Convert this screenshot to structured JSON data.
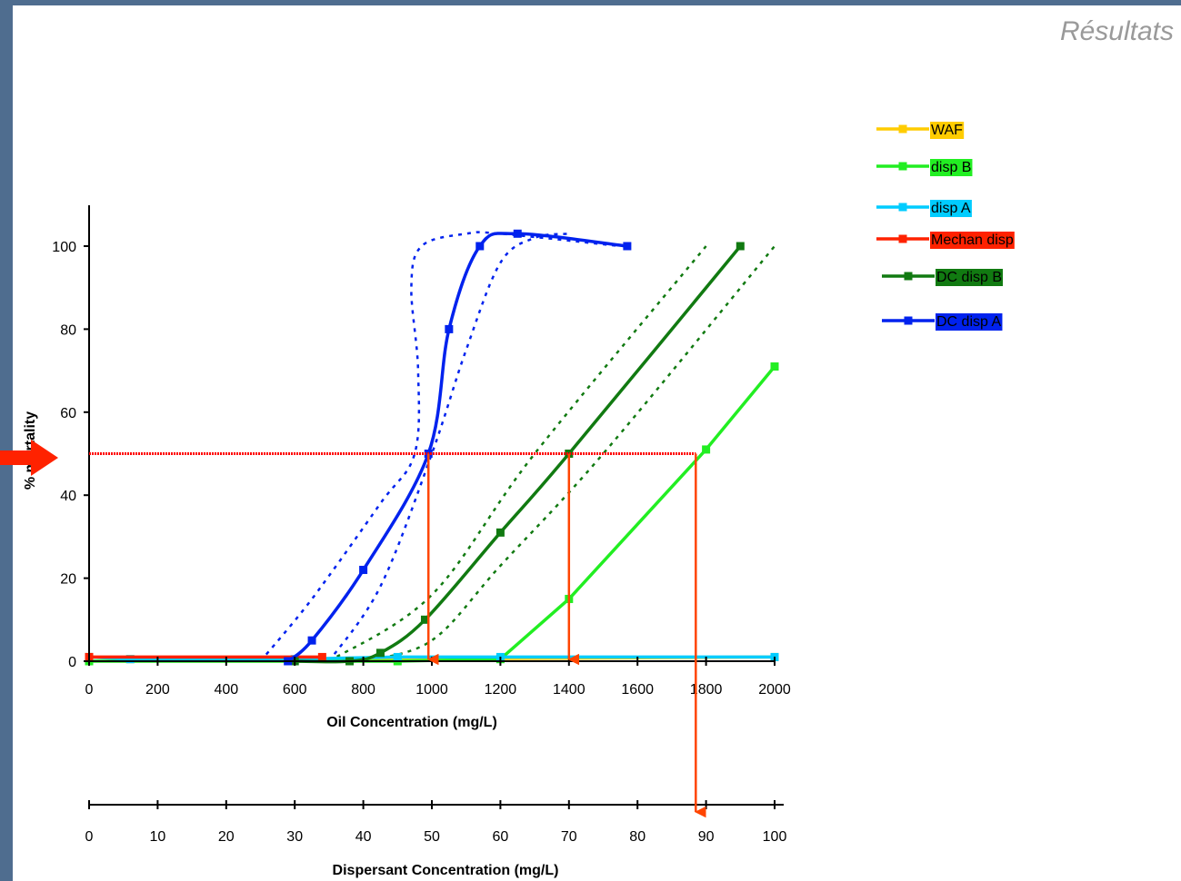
{
  "header": {
    "title": "Résultats"
  },
  "colors": {
    "waf": "#ffcc00",
    "disp_b": "#22ee22",
    "disp_a": "#00ccff",
    "mechan": "#ff2200",
    "dc_disp_b": "#117a11",
    "dc_disp_a": "#0022ee",
    "arrow": "#ff4500",
    "guide": "#ff0000"
  },
  "chart_data": {
    "type": "line",
    "xlabel": "Oil Concentration (mg/L)",
    "x2label": "Dispersant Concentration (mg/L)",
    "ylabel": "% mortality",
    "xlim": [
      0,
      2000
    ],
    "x2lim": [
      0,
      100
    ],
    "ylim": [
      0,
      110
    ],
    "xticks": [
      0,
      200,
      400,
      600,
      800,
      1000,
      1200,
      1400,
      1600,
      1800,
      2000
    ],
    "x2ticks": [
      0,
      10,
      20,
      30,
      40,
      50,
      60,
      70,
      80,
      90,
      100
    ],
    "yticks": [
      0,
      20,
      40,
      60,
      80,
      100
    ],
    "grid": false,
    "legend_position": "top-right",
    "series": [
      {
        "name": "WAF",
        "color": "#ffcc00",
        "x": [
          0,
          120,
          900,
          2000
        ],
        "y": [
          1,
          0.5,
          0.5,
          1
        ]
      },
      {
        "name": "disp B",
        "color": "#22ee22",
        "x": [
          0,
          900,
          1200,
          1400,
          1800,
          2000
        ],
        "y": [
          0,
          0,
          0.5,
          15,
          51,
          71
        ]
      },
      {
        "name": "disp A",
        "color": "#00ccff",
        "x": [
          0,
          120,
          600,
          900,
          1200,
          2000
        ],
        "y": [
          1,
          0.5,
          0.5,
          1,
          1,
          1
        ]
      },
      {
        "name": "Mechan disp",
        "color": "#ff2200",
        "x": [
          0,
          680
        ],
        "y": [
          1,
          1
        ]
      },
      {
        "name": "DC disp B",
        "color": "#117a11",
        "x": [
          600,
          760,
          850,
          980,
          1200,
          1400,
          1900
        ],
        "y": [
          0,
          0,
          2,
          10,
          31,
          50,
          100
        ]
      },
      {
        "name": "DC disp A",
        "color": "#0022ee",
        "x": [
          580,
          650,
          800,
          990,
          1050,
          1140,
          1250,
          1570
        ],
        "y": [
          0,
          5,
          22,
          50,
          80,
          100,
          103,
          100
        ]
      }
    ],
    "confidence_bands": [
      {
        "series": "DC disp A",
        "lower": {
          "x": [
            700,
            850,
            1000,
            1100,
            1200,
            1300,
            1400
          ],
          "y": [
            0,
            18,
            50,
            75,
            96,
            102,
            103
          ]
        },
        "upper": {
          "x": [
            500,
            650,
            850,
            950,
            960,
            940,
            970,
            1100,
            1200,
            1550
          ],
          "y": [
            0,
            15,
            38,
            50,
            70,
            90,
            100,
            103,
            103,
            100
          ]
        }
      },
      {
        "series": "DC disp B",
        "lower": {
          "x": [
            800,
            1000,
            1200,
            1500,
            2000
          ],
          "y": [
            0,
            5,
            23,
            50,
            100
          ]
        },
        "upper": {
          "x": [
            700,
            1000,
            1300,
            1800
          ],
          "y": [
            0,
            16,
            50,
            100
          ]
        }
      }
    ],
    "annotations": {
      "lc50_level": 50,
      "drop_lines_x": [
        990,
        1400,
        1770
      ]
    }
  }
}
